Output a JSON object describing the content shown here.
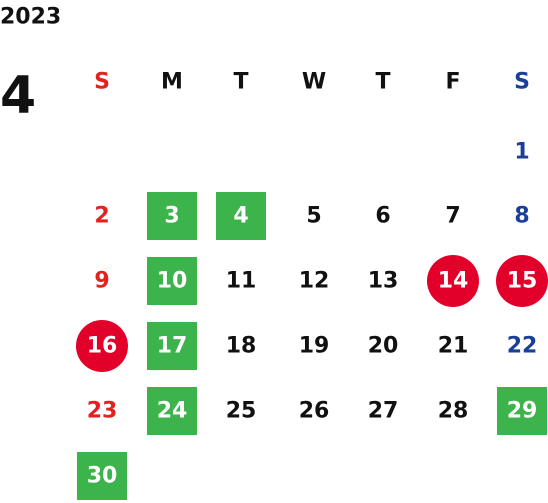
{
  "calendar": {
    "year": "2023",
    "month": "4",
    "weekdays": [
      "S",
      "M",
      "T",
      "W",
      "T",
      "F",
      "S"
    ],
    "colors": {
      "sunday": "#e3211e",
      "saturday": "#1b3f99",
      "weekday": "#111111",
      "square": "#3cb44b",
      "circle": "#e2002a"
    },
    "weeks": [
      [
        null,
        null,
        null,
        null,
        null,
        null,
        {
          "day": "1"
        }
      ],
      [
        {
          "day": "2"
        },
        {
          "day": "3",
          "highlight": "square"
        },
        {
          "day": "4",
          "highlight": "square"
        },
        {
          "day": "5"
        },
        {
          "day": "6"
        },
        {
          "day": "7"
        },
        {
          "day": "8"
        }
      ],
      [
        {
          "day": "9"
        },
        {
          "day": "10",
          "highlight": "square"
        },
        {
          "day": "11"
        },
        {
          "day": "12"
        },
        {
          "day": "13"
        },
        {
          "day": "14",
          "highlight": "circle"
        },
        {
          "day": "15",
          "highlight": "circle"
        }
      ],
      [
        {
          "day": "16",
          "highlight": "circle"
        },
        {
          "day": "17",
          "highlight": "square"
        },
        {
          "day": "18"
        },
        {
          "day": "19"
        },
        {
          "day": "20"
        },
        {
          "day": "21"
        },
        {
          "day": "22"
        }
      ],
      [
        {
          "day": "23"
        },
        {
          "day": "24",
          "highlight": "square"
        },
        {
          "day": "25"
        },
        {
          "day": "26"
        },
        {
          "day": "27"
        },
        {
          "day": "28"
        },
        {
          "day": "29",
          "highlight": "square"
        }
      ],
      [
        {
          "day": "30",
          "highlight": "square"
        }
      ]
    ]
  }
}
